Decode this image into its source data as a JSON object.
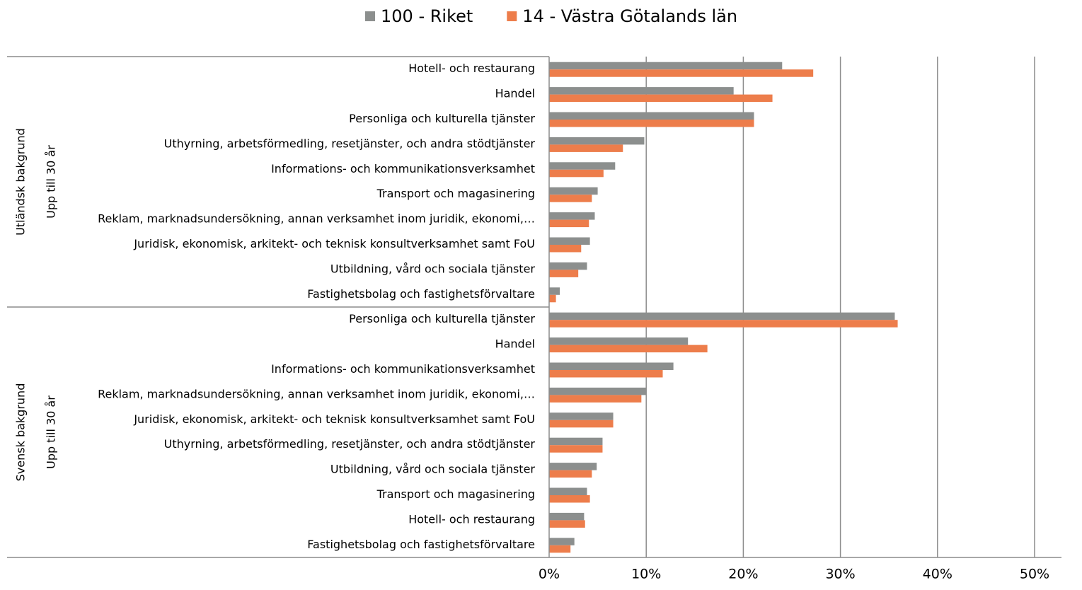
{
  "chart_data": {
    "type": "hbar",
    "groups": [
      {
        "name": "Utländsk bakgrund",
        "subgroup": "Upp till 30 år",
        "categories": [
          "Hotell- och restaurang",
          "Handel",
          "Personliga och kulturella tjänster",
          "Uthyrning, arbetsförmedling, resetjänster, och andra stödtjänster",
          "Informations- och kommunikationsverksamhet",
          "Transport och magasinering",
          "Reklam, marknadsundersökning, annan verksamhet inom juridik, ekonomi,…",
          "Juridisk, ekonomisk, arkitekt- och teknisk konsultverksamhet samt FoU",
          "Utbildning, vård och sociala tjänster",
          "Fastighetsbolag och fastighetsförvaltare"
        ]
      },
      {
        "name": "Svensk bakgrund",
        "subgroup": "Upp till 30 år",
        "categories": [
          "Personliga och kulturella tjänster",
          "Handel",
          "Informations- och kommunikationsverksamhet",
          "Reklam, marknadsundersökning, annan verksamhet inom juridik, ekonomi,…",
          "Juridisk, ekonomisk, arkitekt- och teknisk konsultverksamhet samt FoU",
          "Uthyrning, arbetsförmedling, resetjänster, och andra stödtjänster",
          "Utbildning, vård och sociala tjänster",
          "Transport och magasinering",
          "Hotell- och restaurang",
          "Fastighetsbolag och fastighetsförvaltare"
        ]
      }
    ],
    "series": [
      {
        "name": "100 - Riket",
        "color": "#8c8f8e",
        "values": [
          24.0,
          19.0,
          21.1,
          9.8,
          6.8,
          5.0,
          4.7,
          4.2,
          3.9,
          1.1,
          35.6,
          14.3,
          12.8,
          10.0,
          6.6,
          5.5,
          4.9,
          3.9,
          3.6,
          2.6
        ]
      },
      {
        "name": "14 - Västra Götalands län",
        "color": "#ed7d4b",
        "values": [
          27.2,
          23.0,
          21.1,
          7.6,
          5.6,
          4.4,
          4.1,
          3.3,
          3.0,
          0.7,
          35.9,
          16.3,
          11.7,
          9.5,
          6.6,
          5.5,
          4.4,
          4.2,
          3.7,
          2.2
        ]
      }
    ],
    "xlim": [
      0,
      50
    ],
    "xticks": [
      {
        "value": 0,
        "label": "0%"
      },
      {
        "value": 10,
        "label": "10%"
      },
      {
        "value": 20,
        "label": "20%"
      },
      {
        "value": 30,
        "label": "30%"
      },
      {
        "value": 40,
        "label": "40%"
      },
      {
        "value": 50,
        "label": "50%"
      }
    ],
    "grid": true,
    "legend": "top"
  }
}
